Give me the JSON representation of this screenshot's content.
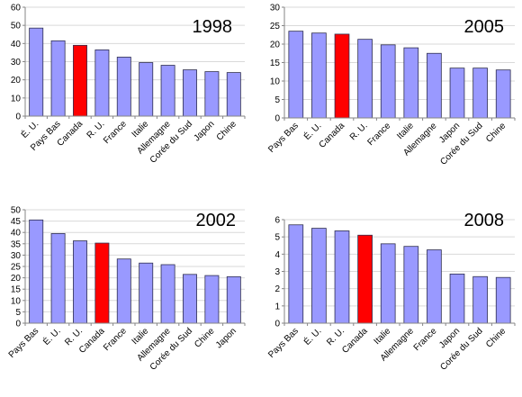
{
  "colors": {
    "bar": "#9999ff",
    "highlight": "#ff0000",
    "grid": "#d9d9d9",
    "axis": "#868686"
  },
  "chart_data": [
    {
      "type": "bar",
      "title": "1998",
      "categories": [
        "É. U.",
        "Pays Bas",
        "Canada",
        "R. U.",
        "France",
        "Italie",
        "Allemagne",
        "Corée du Sud",
        "Japon",
        "Chine"
      ],
      "values": [
        48.5,
        41.5,
        39,
        36.5,
        32.5,
        29.5,
        28,
        25.5,
        24.5,
        24
      ],
      "highlight": "Canada",
      "ylim": [
        0,
        60
      ],
      "yticks": [
        0,
        10,
        20,
        30,
        40,
        50,
        60
      ],
      "grid": true
    },
    {
      "type": "bar",
      "title": "2005",
      "categories": [
        "Pays Bas",
        "É. U.",
        "Canada",
        "R. U.",
        "France",
        "Italie",
        "Allemagne",
        "Japon",
        "Corée du Sud",
        "Chine"
      ],
      "values": [
        23.5,
        23,
        22.7,
        21.3,
        19.8,
        19,
        17.5,
        13.5,
        13.5,
        13
      ],
      "highlight": "Canada",
      "ylim": [
        0,
        30
      ],
      "yticks": [
        0,
        5,
        10,
        15,
        20,
        25,
        30
      ],
      "grid": true
    },
    {
      "type": "bar",
      "title": "2002",
      "categories": [
        "Pays Bas",
        "É. U.",
        "R. U.",
        "Canada",
        "France",
        "Italie",
        "Allemagne",
        "Corée du Sud",
        "Chine",
        "Japon"
      ],
      "values": [
        45.5,
        39.5,
        36.3,
        35.3,
        28.3,
        26.5,
        25.8,
        21.5,
        21,
        20.5
      ],
      "highlight": "Canada",
      "ylim": [
        0,
        50
      ],
      "yticks": [
        0,
        5,
        10,
        15,
        20,
        25,
        30,
        35,
        40,
        45,
        50
      ],
      "grid": true
    },
    {
      "type": "bar",
      "title": "2008",
      "categories": [
        "Pays Bas",
        "É. U.",
        "R. U.",
        "Canada",
        "Italie",
        "Allemagne",
        "France",
        "Japon",
        "Corée du Sud",
        "Chine"
      ],
      "values": [
        5.7,
        5.5,
        5.35,
        5.1,
        4.6,
        4.45,
        4.25,
        2.85,
        2.7,
        2.65
      ],
      "highlight": "Canada",
      "ylim": [
        0,
        6
      ],
      "yticks": [
        0,
        1,
        2,
        3,
        4,
        5,
        6
      ],
      "grid": true
    }
  ]
}
